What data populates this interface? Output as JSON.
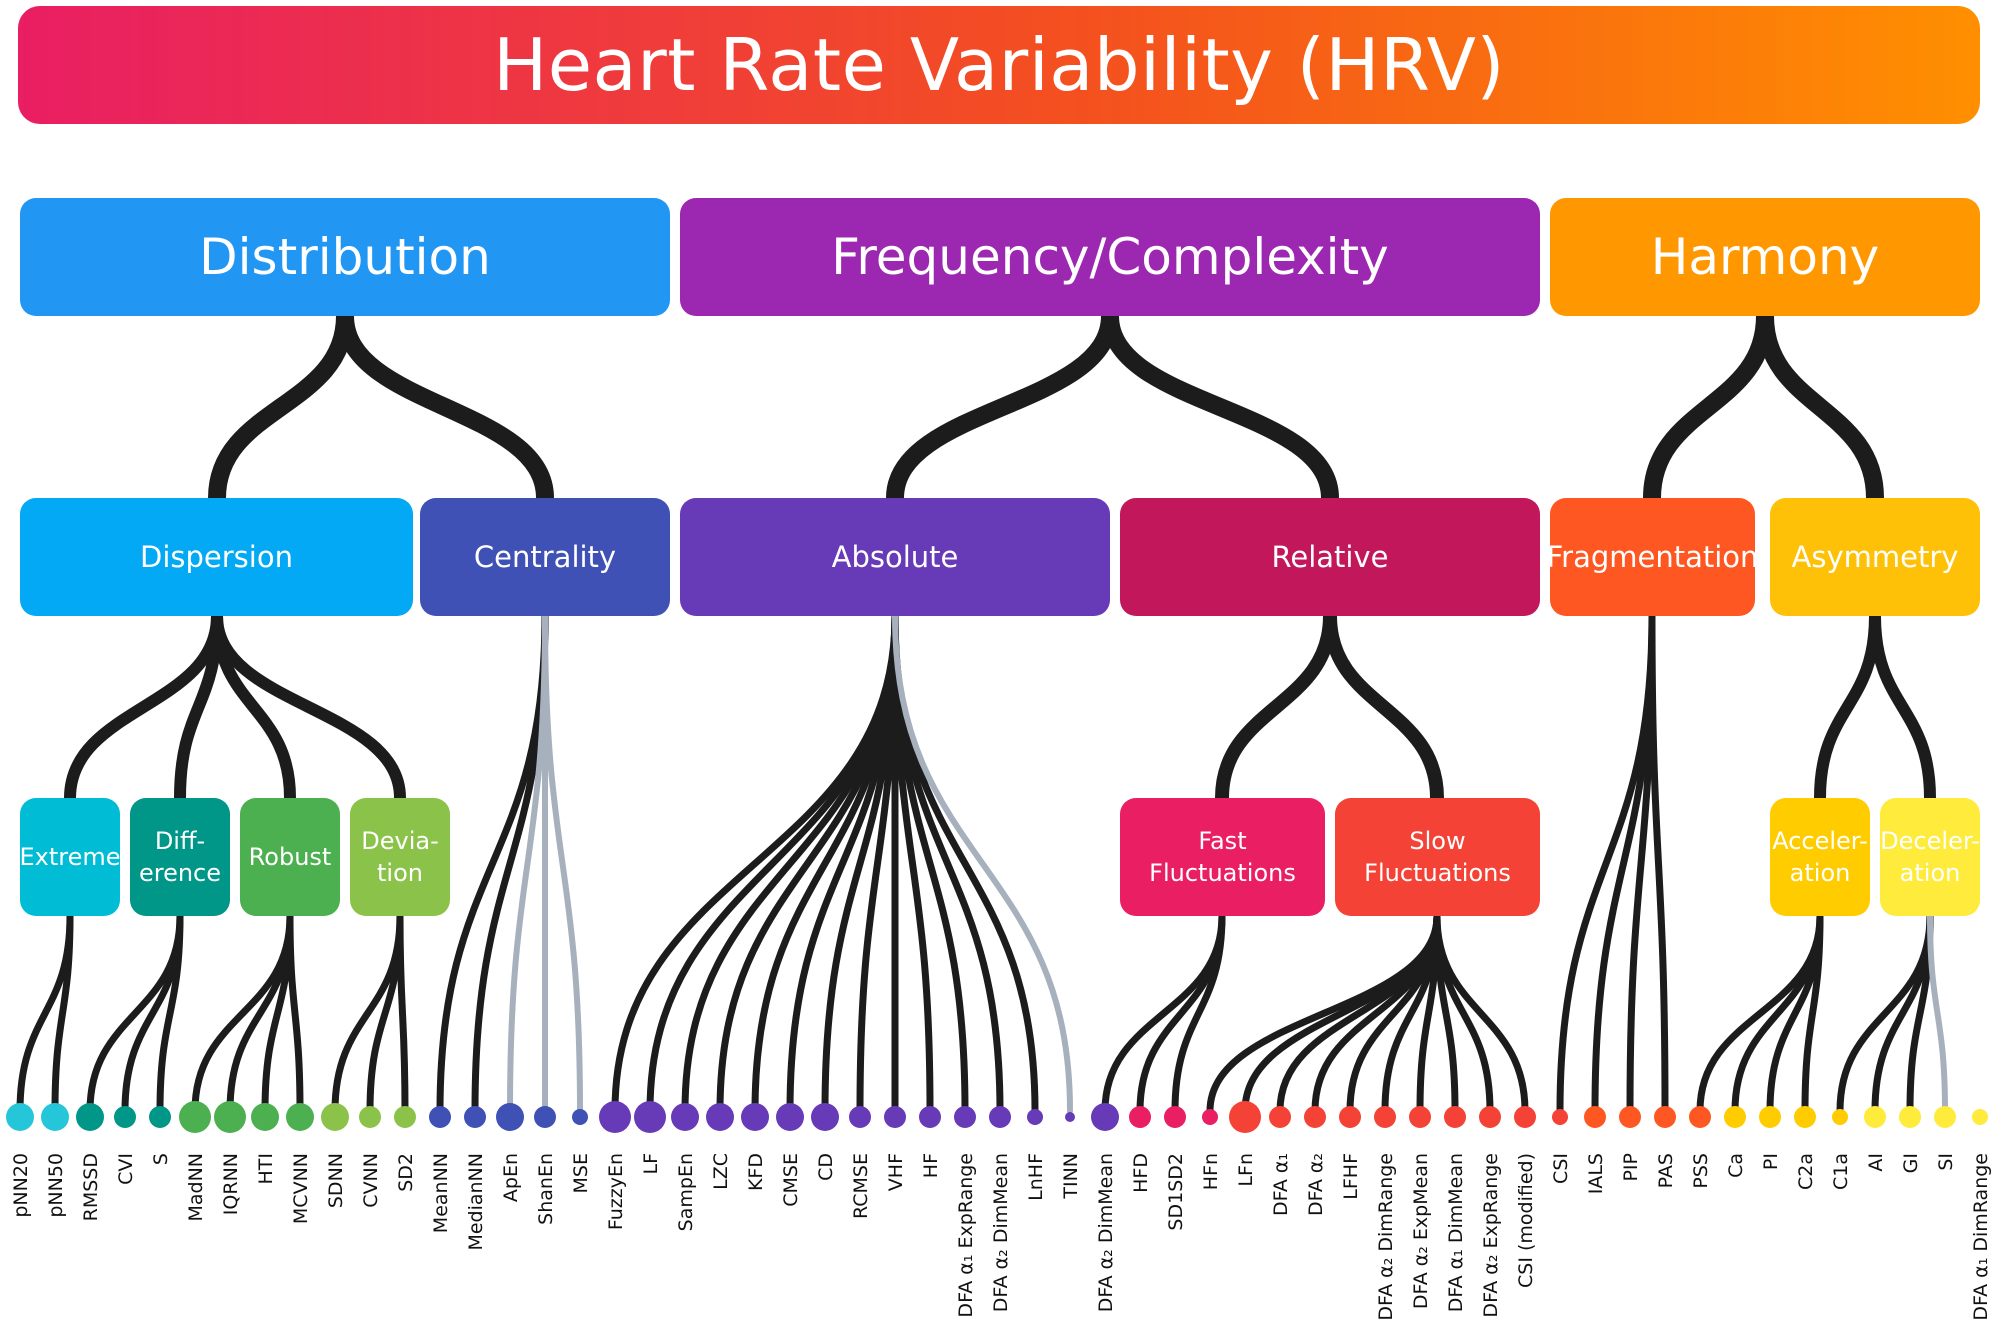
{
  "title": "Heart Rate Variability (HRV)",
  "level1": [
    {
      "id": "distribution",
      "label": "Distribution",
      "color": "#2196f3"
    },
    {
      "id": "freqcomplex",
      "label": "Frequency/Complexity",
      "color": "#9c27b0"
    },
    {
      "id": "harmony",
      "label": "Harmony",
      "color": "#ff9800"
    }
  ],
  "level2": [
    {
      "id": "dispersion",
      "label": "Dispersion",
      "color": "#03a9f4"
    },
    {
      "id": "centrality",
      "label": "Centrality",
      "color": "#3f51b5"
    },
    {
      "id": "absolute",
      "label": "Absolute",
      "color": "#673ab7"
    },
    {
      "id": "relative",
      "label": "Relative",
      "color": "#c2185b"
    },
    {
      "id": "fragmentation",
      "label": "Fragmentation",
      "color": "#ff5722"
    },
    {
      "id": "asymmetry",
      "label": "Asymmetry",
      "color": "#ffc107"
    }
  ],
  "level3": [
    {
      "id": "extreme",
      "label": "Extreme",
      "color": "#00bcd4"
    },
    {
      "id": "difference",
      "label": "Diff-\nerence",
      "color": "#009688"
    },
    {
      "id": "robust",
      "label": "Robust",
      "color": "#4caf50"
    },
    {
      "id": "deviation",
      "label": "Devia-\ntion",
      "color": "#8bc34a"
    },
    {
      "id": "fast",
      "label": "Fast\nFluctuations",
      "color": "#e91e63"
    },
    {
      "id": "slow",
      "label": "Slow\nFluctuations",
      "color": "#f44336"
    },
    {
      "id": "acceleration",
      "label": "Acceler-\nation",
      "color": "#ffcc00"
    },
    {
      "id": "deceleration",
      "label": "Deceler-\nation",
      "color": "#ffeb3b"
    }
  ],
  "leaves": [
    {
      "label": "pNN20",
      "color": "#26c6da",
      "size": "large"
    },
    {
      "label": "pNN50",
      "color": "#26c6da",
      "size": "large"
    },
    {
      "label": "RMSSD",
      "color": "#009688",
      "size": "large"
    },
    {
      "label": "CVI",
      "color": "#009688",
      "size": "medium"
    },
    {
      "label": "S",
      "color": "#009688",
      "size": "medium"
    },
    {
      "label": "MadNN",
      "color": "#4caf50",
      "size": "xlarge"
    },
    {
      "label": "IQRNN",
      "color": "#4caf50",
      "size": "xlarge"
    },
    {
      "label": "HTI",
      "color": "#4caf50",
      "size": "large"
    },
    {
      "label": "MCVNN",
      "color": "#4caf50",
      "size": "large"
    },
    {
      "label": "SDNN",
      "color": "#8bc34a",
      "size": "large"
    },
    {
      "label": "CVNN",
      "color": "#8bc34a",
      "size": "medium"
    },
    {
      "label": "SD2",
      "color": "#8bc34a",
      "size": "medium"
    },
    {
      "label": "MeanNN",
      "color": "#3f51b5",
      "size": "medium"
    },
    {
      "label": "MedianNN",
      "color": "#3f51b5",
      "size": "medium"
    },
    {
      "label": "ApEn",
      "color": "#3f51b5",
      "size": "large"
    },
    {
      "label": "ShanEn",
      "color": "#3f51b5",
      "size": "medium"
    },
    {
      "label": "MSE",
      "color": "#3f51b5",
      "size": "small"
    },
    {
      "label": "FuzzyEn",
      "color": "#673ab7",
      "size": "xlarge"
    },
    {
      "label": "LF",
      "color": "#673ab7",
      "size": "xlarge"
    },
    {
      "label": "SampEn",
      "color": "#673ab7",
      "size": "large"
    },
    {
      "label": "LZC",
      "color": "#673ab7",
      "size": "large"
    },
    {
      "label": "KFD",
      "color": "#673ab7",
      "size": "large"
    },
    {
      "label": "CMSE",
      "color": "#673ab7",
      "size": "large"
    },
    {
      "label": "CD",
      "color": "#673ab7",
      "size": "large"
    },
    {
      "label": "RCMSE",
      "color": "#673ab7",
      "size": "medium"
    },
    {
      "label": "VHF",
      "color": "#673ab7",
      "size": "medium"
    },
    {
      "label": "HF",
      "color": "#673ab7",
      "size": "medium"
    },
    {
      "label": "DFA α₁ ExpRange",
      "color": "#673ab7",
      "size": "medium"
    },
    {
      "label": "DFA α₂ DimMean",
      "color": "#673ab7",
      "size": "medium"
    },
    {
      "label": "LnHF",
      "color": "#673ab7",
      "size": "small"
    },
    {
      "label": "TINN",
      "color": "#673ab7",
      "size": "tiny"
    },
    {
      "label": "DFA α₂ DimMean",
      "color": "#673ab7",
      "size": "large"
    },
    {
      "label": "HFD",
      "color": "#e91e63",
      "size": "medium"
    },
    {
      "label": "SD1SD2",
      "color": "#e91e63",
      "size": "medium"
    },
    {
      "label": "HFn",
      "color": "#e91e63",
      "size": "small"
    },
    {
      "label": "LFn",
      "color": "#f44336",
      "size": "xlarge"
    },
    {
      "label": "DFA α₁",
      "color": "#f44336",
      "size": "medium"
    },
    {
      "label": "DFA α₂",
      "color": "#f44336",
      "size": "medium"
    },
    {
      "label": "LFHF",
      "color": "#f44336",
      "size": "medium"
    },
    {
      "label": "DFA α₂ DimRange",
      "color": "#f44336",
      "size": "medium"
    },
    {
      "label": "DFA α₂ ExpMean",
      "color": "#f44336",
      "size": "medium"
    },
    {
      "label": "DFA α₁ DimMean",
      "color": "#f44336",
      "size": "medium"
    },
    {
      "label": "DFA α₂ ExpRange",
      "color": "#f44336",
      "size": "medium"
    },
    {
      "label": "CSI (modified)",
      "color": "#f44336",
      "size": "medium"
    },
    {
      "label": "CSI",
      "color": "#f44336",
      "size": "small"
    },
    {
      "label": "IALS",
      "color": "#ff5722",
      "size": "medium"
    },
    {
      "label": "PIP",
      "color": "#ff5722",
      "size": "medium"
    },
    {
      "label": "PAS",
      "color": "#ff5722",
      "size": "medium"
    },
    {
      "label": "PSS",
      "color": "#ff5722",
      "size": "medium"
    },
    {
      "label": "Ca",
      "color": "#ffcc00",
      "size": "medium"
    },
    {
      "label": "PI",
      "color": "#ffcc00",
      "size": "medium"
    },
    {
      "label": "C2a",
      "color": "#ffcc00",
      "size": "medium"
    },
    {
      "label": "C1a",
      "color": "#ffcc00",
      "size": "small"
    },
    {
      "label": "AI",
      "color": "#ffeb3b",
      "size": "medium"
    },
    {
      "label": "GI",
      "color": "#ffeb3b",
      "size": "medium"
    },
    {
      "label": "SI",
      "color": "#ffeb3b",
      "size": "medium"
    },
    {
      "label": "DFA α₁ DimRange",
      "color": "#ffeb3b",
      "size": "small"
    }
  ],
  "colors": {
    "branch": "#1c1c1c",
    "faded_branch": "#a7b0bd"
  }
}
